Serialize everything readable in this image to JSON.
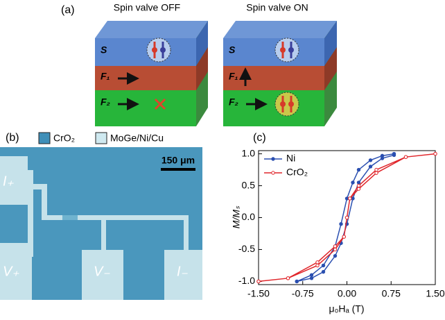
{
  "panel_a": {
    "label": "(a)",
    "blocks": [
      {
        "title": "Spin valve OFF",
        "layers": [
          "S",
          "F₁",
          "F₂"
        ]
      },
      {
        "title": "Spin valve ON",
        "layers": [
          "S",
          "F₁",
          "F₂"
        ]
      }
    ]
  },
  "panel_b": {
    "label": "(b)",
    "legend": [
      "CrO₂",
      "MoGe/Ni/Cu"
    ],
    "scale_bar": "150 μm",
    "contacts": [
      "I₊",
      "V₊",
      "V₋",
      "I₋"
    ]
  },
  "chart_data": {
    "type": "line",
    "label": "(c)",
    "x_label": "μ₀Hₐ (T)",
    "y_label": "M/Mₛ",
    "xlim": [
      -1.5,
      1.5
    ],
    "ylim": [
      -1.05,
      1.05
    ],
    "xticks": [
      {
        "value": -1.5,
        "label": "-1.50"
      },
      {
        "value": -0.75,
        "label": "-0.75"
      },
      {
        "value": 0,
        "label": "0.00"
      },
      {
        "value": 0.75,
        "label": "0.75"
      },
      {
        "value": 1.5,
        "label": "1.50"
      }
    ],
    "yticks": [
      {
        "value": -1,
        "label": "-1.0"
      },
      {
        "value": -0.5,
        "label": "-0.5"
      },
      {
        "value": 0,
        "label": "0.0"
      },
      {
        "value": 0.5,
        "label": "0.5"
      },
      {
        "value": 1,
        "label": "1.0"
      }
    ],
    "legend": "upper left",
    "series": [
      {
        "name": "Ni",
        "color": "#2a4fb0",
        "x": [
          -0.85,
          -0.6,
          -0.4,
          -0.2,
          -0.1,
          0,
          0.1,
          0.2,
          0.4,
          0.6,
          0.8,
          0.8,
          0.6,
          0.4,
          0.2,
          0.1,
          0,
          -0.1,
          -0.2,
          -0.4,
          -0.6,
          -0.85
        ],
        "values": [
          -1.0,
          -0.95,
          -0.85,
          -0.6,
          -0.4,
          -0.1,
          0.3,
          0.55,
          0.8,
          0.93,
          0.98,
          1.0,
          0.97,
          0.9,
          0.75,
          0.55,
          0.3,
          -0.1,
          -0.45,
          -0.75,
          -0.9,
          -1.0
        ]
      },
      {
        "name": "CrO₂",
        "color": "#e0262b",
        "x": [
          -1.5,
          -1.0,
          -0.5,
          -0.2,
          -0.05,
          0,
          0.05,
          0.2,
          0.5,
          1.0,
          1.5,
          1.5,
          1.0,
          0.5,
          0.2,
          0.05,
          0,
          -0.05,
          -0.2,
          -0.5,
          -1.0,
          -1.5
        ],
        "values": [
          -1.0,
          -0.95,
          -0.75,
          -0.5,
          -0.3,
          0,
          0.3,
          0.45,
          0.7,
          0.95,
          1.0,
          1.0,
          0.95,
          0.75,
          0.5,
          0.3,
          0,
          -0.3,
          -0.45,
          -0.7,
          -0.95,
          -1.0
        ]
      }
    ]
  }
}
